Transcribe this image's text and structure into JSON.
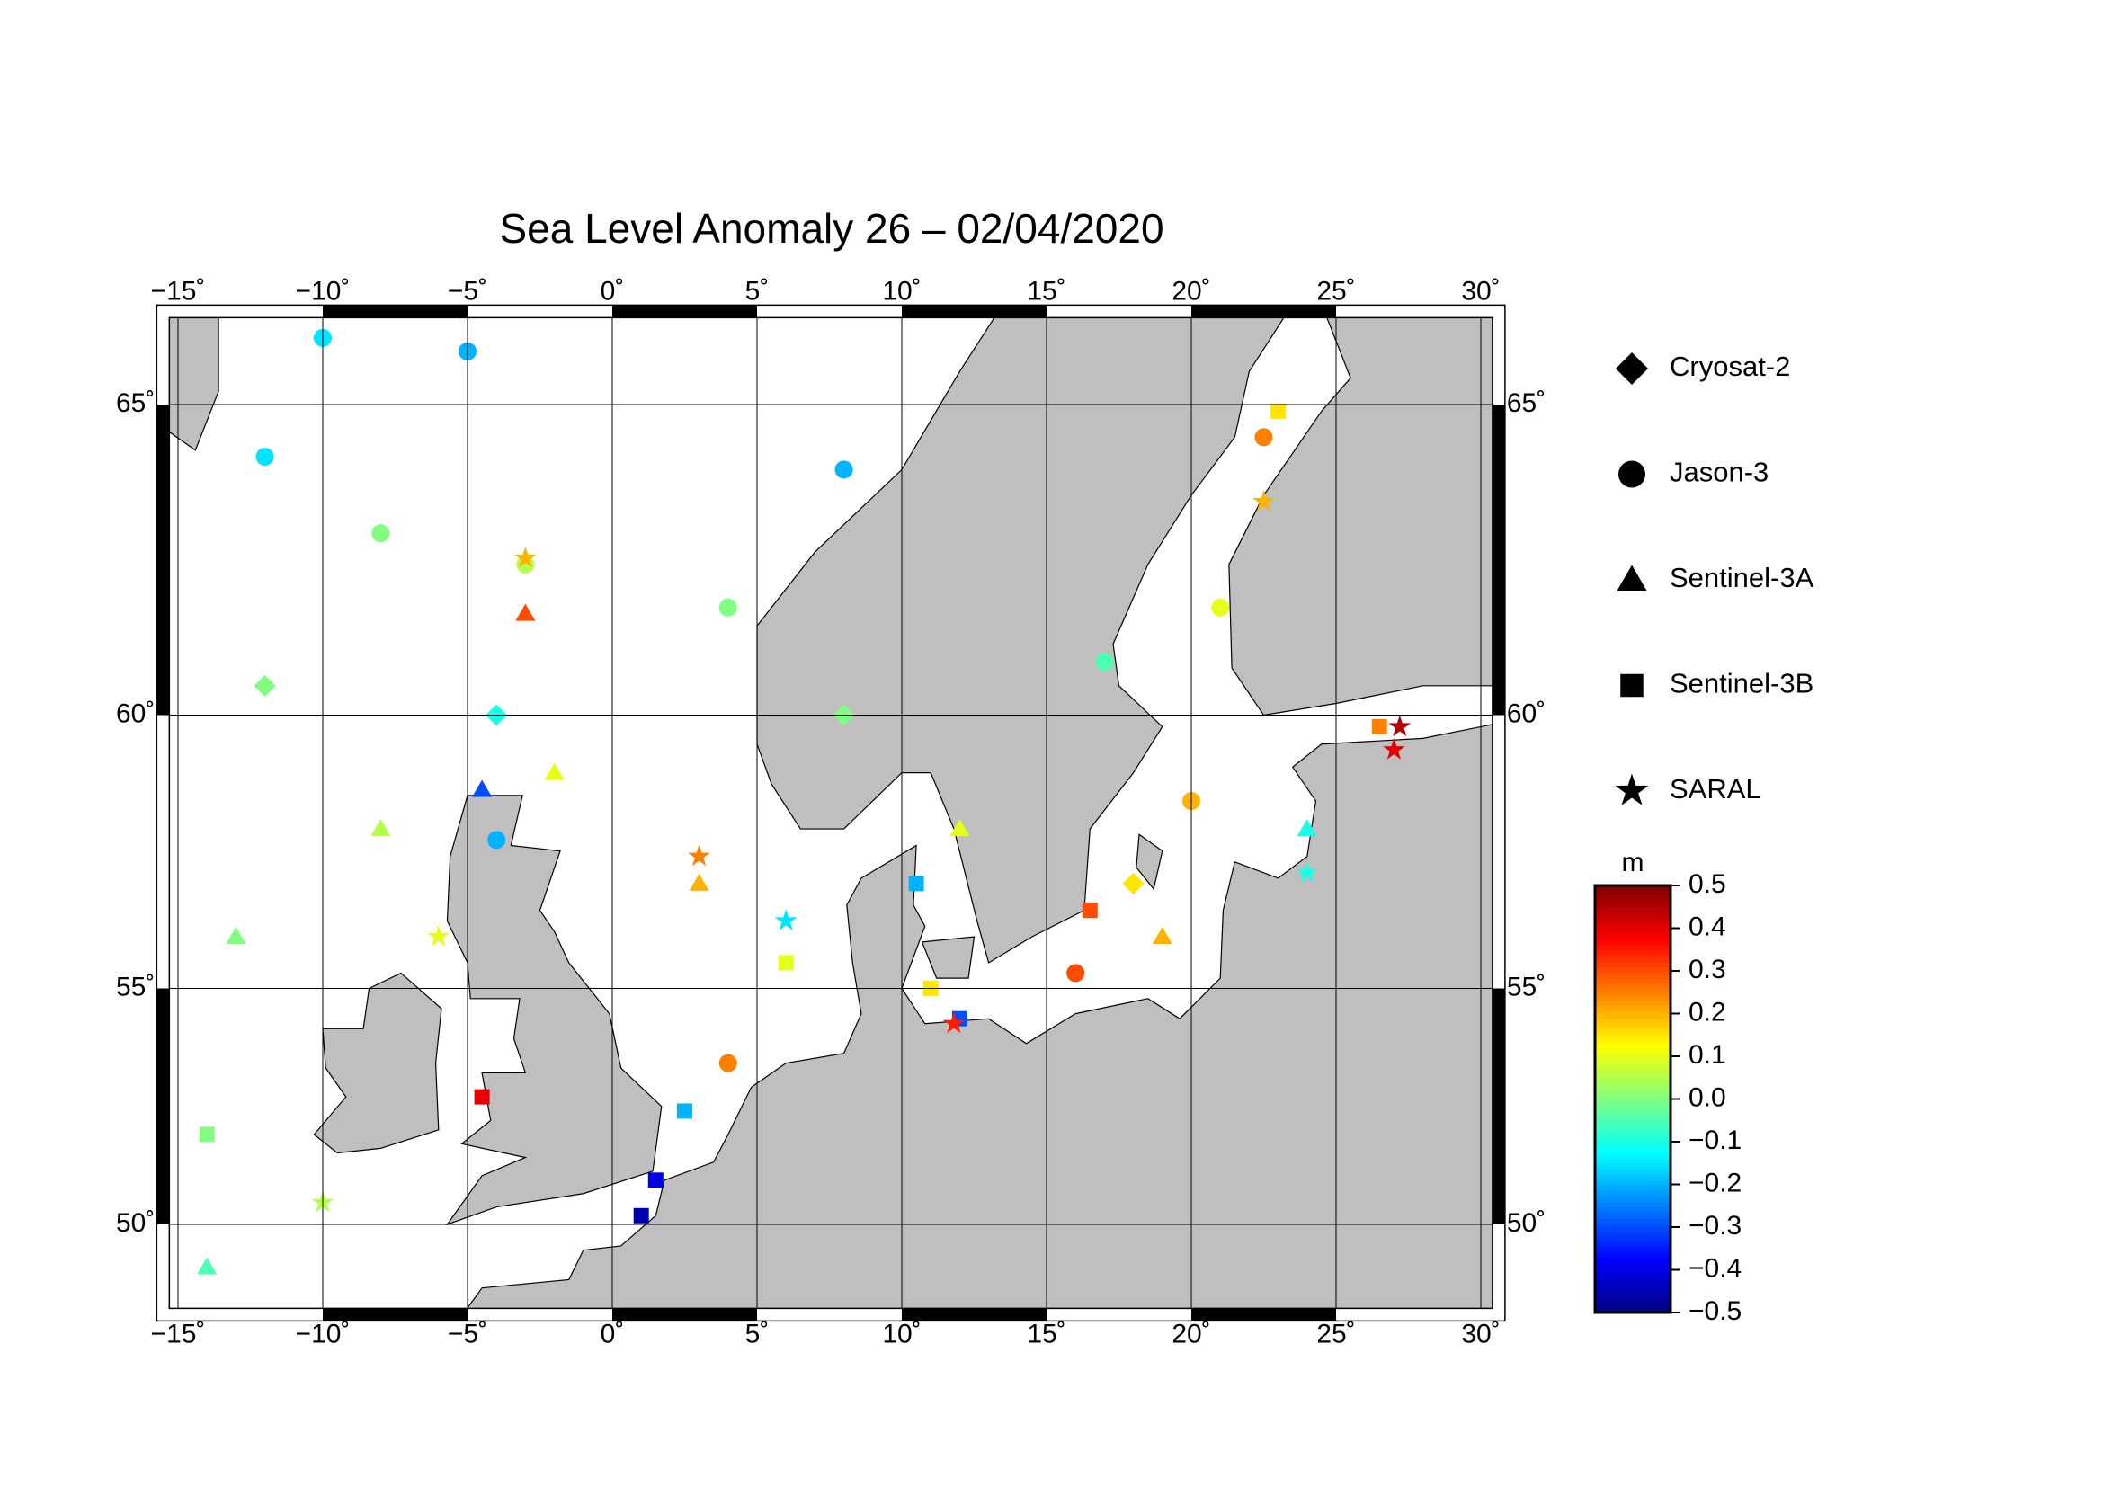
{
  "chart_data": {
    "type": "map",
    "title": "Sea Level Anomaly 26 – 02/04/2020",
    "xlim": [
      -15.3,
      30.4
    ],
    "ylim": [
      48,
      66.3
    ],
    "xticks": [
      {
        "value": -15,
        "label": "−15˚"
      },
      {
        "value": -10,
        "label": "−10˚"
      },
      {
        "value": -5,
        "label": "−5˚"
      },
      {
        "value": 0,
        "label": "0˚"
      },
      {
        "value": 5,
        "label": "5˚"
      },
      {
        "value": 10,
        "label": "10˚"
      },
      {
        "value": 15,
        "label": "15˚"
      },
      {
        "value": 20,
        "label": "20˚"
      },
      {
        "value": 25,
        "label": "25˚"
      },
      {
        "value": 30,
        "label": "30˚"
      }
    ],
    "yticks": [
      {
        "value": 50,
        "label": "50˚"
      },
      {
        "value": 55,
        "label": "55˚"
      },
      {
        "value": 60,
        "label": "60˚"
      },
      {
        "value": 65,
        "label": "65˚"
      }
    ],
    "grid": true,
    "colorbar": {
      "label": "m",
      "lim": [
        -0.5,
        0.5
      ],
      "ticks": [
        {
          "value": 0.5,
          "label": "0.5"
        },
        {
          "value": 0.4,
          "label": "0.4"
        },
        {
          "value": 0.3,
          "label": "0.3"
        },
        {
          "value": 0.2,
          "label": "0.2"
        },
        {
          "value": 0.1,
          "label": "0.1"
        },
        {
          "value": 0,
          "label": "0.0"
        },
        {
          "value": -0.1,
          "label": "−0.1"
        },
        {
          "value": -0.2,
          "label": "−0.2"
        },
        {
          "value": -0.3,
          "label": "−0.3"
        },
        {
          "value": -0.4,
          "label": "−0.4"
        },
        {
          "value": -0.5,
          "label": "−0.5"
        }
      ]
    },
    "series": [
      {
        "name": "Cryosat-2",
        "marker": "diamond",
        "lon": [
          -4,
          8,
          -12,
          18
        ],
        "lat": [
          60,
          60,
          60.5,
          57
        ],
        "values": [
          -0.1,
          0,
          0,
          0.15
        ]
      },
      {
        "name": "Jason-3",
        "marker": "circle",
        "lon": [
          -10,
          -5,
          -12,
          -8,
          -3,
          4,
          22.5,
          21,
          17,
          16,
          4,
          -4,
          8,
          20
        ],
        "lat": [
          66,
          65.8,
          64.2,
          63,
          62.5,
          61.8,
          64.5,
          61.8,
          60.9,
          55.3,
          53.5,
          57.8,
          64,
          58.5
        ],
        "values": [
          -0.15,
          -0.2,
          -0.15,
          0,
          0.05,
          0,
          0.25,
          0.1,
          -0.05,
          0.3,
          0.25,
          -0.2,
          -0.2,
          0.2
        ]
      },
      {
        "name": "Sentinel-3A",
        "marker": "triangle",
        "lon": [
          -3,
          -4.5,
          -13,
          -8,
          3,
          -14,
          12,
          24,
          19,
          -2
        ],
        "lat": [
          61.7,
          58.7,
          56,
          58,
          57,
          49,
          58,
          58,
          56,
          59
        ],
        "values": [
          0.3,
          -0.3,
          0,
          0.05,
          0.2,
          -0.05,
          0.1,
          -0.1,
          0.2,
          0.1
        ]
      },
      {
        "name": "Sentinel-3B",
        "marker": "square",
        "lon": [
          1,
          1.5,
          2.5,
          12,
          -4.5,
          10.5,
          23,
          26.5,
          -14,
          6,
          16.5,
          11
        ],
        "lat": [
          50.2,
          51,
          52.5,
          54.4,
          52.8,
          57,
          64.9,
          59.8,
          52,
          55.5,
          56.5,
          55
        ],
        "values": [
          -0.45,
          -0.4,
          -0.2,
          -0.3,
          0.4,
          -0.2,
          0.15,
          0.25,
          0,
          0.1,
          0.3,
          0.15
        ]
      },
      {
        "name": "SARAL",
        "marker": "star",
        "lon": [
          27.2,
          27,
          11.8,
          -3,
          3,
          -10,
          6,
          24,
          22.5,
          -6
        ],
        "lat": [
          59.8,
          59.4,
          54.3,
          62.6,
          57.5,
          50.5,
          56.3,
          57.2,
          63.5,
          56
        ],
        "values": [
          0.45,
          0.4,
          0.35,
          0.2,
          0.25,
          0.05,
          -0.15,
          -0.1,
          0.2,
          0.1
        ]
      }
    ]
  }
}
